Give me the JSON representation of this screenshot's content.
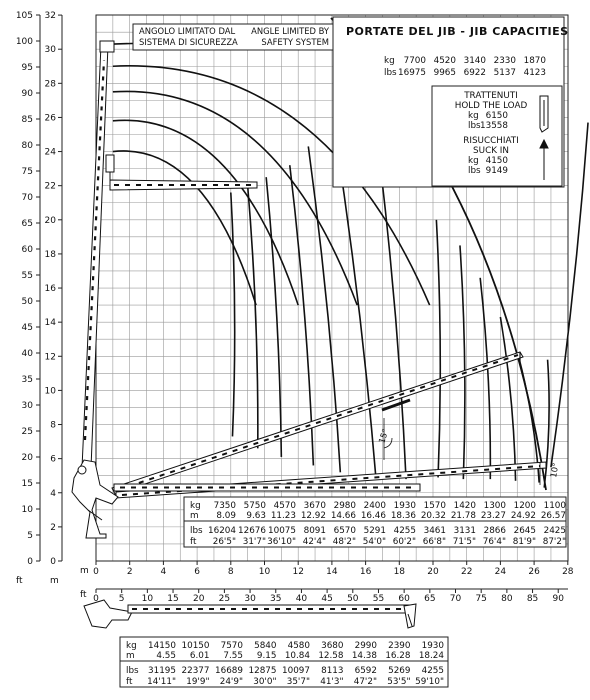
{
  "chart_data": {
    "type": "line",
    "title": "PORTATE DEL JIB  -  JIB CAPACITIES",
    "left_axis_ft": {
      "unit": "ft",
      "ticks": [
        "0",
        "5",
        "10",
        "15",
        "20",
        "25",
        "30",
        "35",
        "40",
        "45",
        "50",
        "55",
        "60",
        "65",
        "70",
        "75",
        "80",
        "85",
        "90",
        "95",
        "100",
        "105"
      ]
    },
    "left_axis_m": {
      "unit": "m",
      "ticks": [
        "0",
        "2",
        "4",
        "6",
        "8",
        "10",
        "12",
        "14",
        "16",
        "18",
        "20",
        "22",
        "24",
        "26",
        "28",
        "30",
        "32"
      ],
      "ylim": [
        0,
        32
      ]
    },
    "x_axis_m": {
      "unit": "m",
      "ticks": [
        "0",
        "2",
        "4",
        "6",
        "8",
        "10",
        "12",
        "14",
        "16",
        "18",
        "20",
        "22",
        "24",
        "26",
        "28"
      ],
      "xlim": [
        0,
        28
      ]
    },
    "x_axis_ft": {
      "unit": "ft",
      "ticks": [
        "0",
        "5",
        "10",
        "15",
        "20",
        "25",
        "30",
        "35",
        "40",
        "45",
        "50",
        "55",
        "60",
        "65",
        "70",
        "75",
        "80",
        "85",
        "90"
      ]
    },
    "safety_note": {
      "it": [
        "ANGOLO LIMITATO DAL",
        "SISTEMA DI SICUREZZA"
      ],
      "en": [
        "ANGLE LIMITED BY",
        "SAFETY SYSTEM"
      ]
    },
    "jib_capacities": {
      "row_labels": [
        "kg",
        "lbs"
      ],
      "kg": [
        "7700",
        "4520",
        "3140",
        "2330",
        "1870"
      ],
      "lbs": [
        "16975",
        "9965",
        "6922",
        "5137",
        "4123"
      ]
    },
    "hold_load": {
      "title": [
        "TRATTENUTI",
        "HOLD THE LOAD"
      ],
      "kg_label": "kg",
      "kg": "6150",
      "lbs_label": "lbs",
      "lbs": "13558"
    },
    "suck_in": {
      "title": [
        "RISUCCHIATI",
        "SUCK IN"
      ],
      "kg_label": "kg",
      "kg": "4150",
      "lbs_label": "lbs",
      "lbs": "9149"
    },
    "jib_angles": [
      "15°",
      "10°"
    ],
    "main_table": {
      "row_labels": [
        "kg",
        "m",
        "lbs",
        "ft"
      ],
      "kg": [
        "7350",
        "5750",
        "4570",
        "3670",
        "2980",
        "2400",
        "1930",
        "1570",
        "1420",
        "1300",
        "1200",
        "1100"
      ],
      "m": [
        "8.09",
        "9.63",
        "11.23",
        "12.92",
        "14.66",
        "16.46",
        "18.36",
        "20.32",
        "21.78",
        "23.27",
        "24.92",
        "26.57"
      ],
      "lbs": [
        "16204",
        "12676",
        "10075",
        "8091",
        "6570",
        "5291",
        "4255",
        "3461",
        "3131",
        "2866",
        "2645",
        "2425"
      ],
      "ft": [
        "26'5\"",
        "31'7\"",
        "36'10\"",
        "42'4\"",
        "48'2\"",
        "54'0\"",
        "60'2\"",
        "66'8\"",
        "71'5\"",
        "76'4\"",
        "81'9\"",
        "87'2\""
      ]
    },
    "horizontal_table": {
      "row_labels": [
        "kg",
        "m",
        "lbs",
        "ft"
      ],
      "kg": [
        "14150",
        "10150",
        "7570",
        "5840",
        "4580",
        "3680",
        "2990",
        "2390",
        "1930"
      ],
      "m": [
        "4.55",
        "6.01",
        "7.55",
        "9.15",
        "10.84",
        "12.58",
        "14.38",
        "16.28",
        "18.24"
      ],
      "lbs": [
        "31195",
        "22377",
        "16689",
        "12875",
        "10097",
        "8113",
        "6592",
        "5269",
        "4255"
      ],
      "ft": [
        "14'11\"",
        "19'9\"",
        "24'9\"",
        "30'0\"",
        "35'7\"",
        "41'3\"",
        "47'2\"",
        "53'5\"",
        "59'10\""
      ]
    },
    "envelope_arcs": [
      {
        "top_height": 30.3,
        "end_radius": 26.6
      },
      {
        "top_height": 29.0,
        "end_radius": 19.8
      },
      {
        "top_height": 27.5,
        "end_radius": 15.5
      },
      {
        "top_height": 25.8,
        "end_radius": 12.0
      },
      {
        "top_height": 24.0,
        "end_radius": 9.5
      }
    ],
    "radial_lines": [
      {
        "top": [
          29.2,
          25.7
        ],
        "bottom": [
          27.0,
          5.5
        ]
      },
      {
        "top": [
          26.8,
          11.8
        ],
        "bottom": [
          26.6,
          4.3
        ]
      },
      {
        "top": [
          16.8,
          23.8
        ],
        "bottom": [
          18.4,
          4.8
        ]
      },
      {
        "top": [
          14.2,
          25.0
        ],
        "bottom": [
          16.6,
          5.0
        ]
      },
      {
        "top": [
          12.6,
          24.3
        ],
        "bottom": [
          14.5,
          5.2
        ]
      },
      {
        "top": [
          11.5,
          23.2
        ],
        "bottom": [
          12.9,
          5.6
        ]
      },
      {
        "top": [
          10.1,
          22.5
        ],
        "bottom": [
          11.0,
          6.1
        ]
      },
      {
        "top": [
          9.0,
          22.0
        ],
        "bottom": [
          9.6,
          6.6
        ]
      },
      {
        "top": [
          8.0,
          21.6
        ],
        "bottom": [
          8.1,
          7.3
        ]
      },
      {
        "top": [
          21.6,
          18.5
        ],
        "bottom": [
          21.8,
          4.8
        ]
      },
      {
        "top": [
          22.8,
          16.6
        ],
        "bottom": [
          23.4,
          4.8
        ]
      },
      {
        "top": [
          24.0,
          14.3
        ],
        "bottom": [
          24.9,
          4.7
        ]
      },
      {
        "top": [
          25.1,
          11.9
        ],
        "bottom": [
          26.3,
          4.6
        ]
      },
      {
        "top": [
          20.2,
          20.0
        ],
        "bottom": [
          20.3,
          4.9
        ]
      }
    ]
  }
}
